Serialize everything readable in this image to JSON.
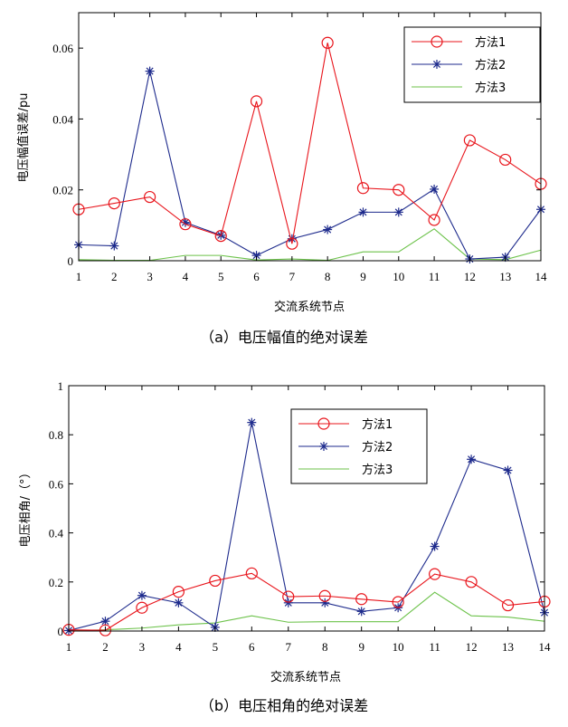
{
  "chart_data": [
    {
      "type": "line",
      "caption": "（a）电压幅值的绝对误差",
      "xlabel": "交流系统节点",
      "ylabel": "电压幅值误差/pu",
      "x": [
        1,
        2,
        3,
        4,
        5,
        6,
        7,
        8,
        9,
        10,
        11,
        12,
        13,
        14
      ],
      "xlim": [
        1,
        14
      ],
      "ylim": [
        0,
        0.07
      ],
      "yticks": [
        0,
        0.02,
        0.04,
        0.06
      ],
      "ytick_labels": [
        "0",
        "0.02",
        "0.04",
        "0.06"
      ],
      "series": [
        {
          "name": "方法1",
          "color": "#e8141b",
          "marker": "circle",
          "values": [
            0.0145,
            0.0162,
            0.018,
            0.0103,
            0.007,
            0.045,
            0.0048,
            0.0615,
            0.0205,
            0.02,
            0.0115,
            0.034,
            0.0285,
            0.0217
          ]
        },
        {
          "name": "方法2",
          "color": "#1d2a8c",
          "marker": "star",
          "values": [
            0.0045,
            0.0042,
            0.0535,
            0.0108,
            0.0072,
            0.0015,
            0.0062,
            0.0088,
            0.0137,
            0.0137,
            0.0202,
            0.0005,
            0.001,
            0.0145
          ]
        },
        {
          "name": "方法3",
          "color": "#6cc24a",
          "marker": "none",
          "values": [
            0.0003,
            0.0001,
            0.0001,
            0.0015,
            0.0015,
            0.0002,
            0.0005,
            0.0001,
            0.0025,
            0.0025,
            0.009,
            0.0005,
            0.0003,
            0.003
          ]
        }
      ]
    },
    {
      "type": "line",
      "caption": "（b）电压相角的绝对误差",
      "xlabel": "交流系统节点",
      "ylabel": "电压相角/（°）",
      "x": [
        1,
        2,
        3,
        4,
        5,
        6,
        7,
        8,
        9,
        10,
        11,
        12,
        13,
        14
      ],
      "xlim": [
        1,
        14
      ],
      "ylim": [
        0,
        1
      ],
      "yticks": [
        0,
        0.2,
        0.4,
        0.6,
        0.8,
        1
      ],
      "ytick_labels": [
        "0",
        "0.2",
        "0.4",
        "0.6",
        "0.8",
        "1"
      ],
      "series": [
        {
          "name": "方法1",
          "color": "#e8141b",
          "marker": "circle",
          "values": [
            0.005,
            0.003,
            0.095,
            0.16,
            0.205,
            0.235,
            0.14,
            0.143,
            0.13,
            0.118,
            0.232,
            0.2,
            0.105,
            0.12
          ]
        },
        {
          "name": "方法2",
          "color": "#1d2a8c",
          "marker": "star",
          "values": [
            0.002,
            0.04,
            0.145,
            0.115,
            0.015,
            0.85,
            0.115,
            0.115,
            0.08,
            0.095,
            0.345,
            0.7,
            0.655,
            0.075
          ]
        },
        {
          "name": "方法3",
          "color": "#6cc24a",
          "marker": "none",
          "values": [
            0.001,
            0.005,
            0.012,
            0.025,
            0.033,
            0.062,
            0.036,
            0.038,
            0.038,
            0.038,
            0.158,
            0.062,
            0.057,
            0.04
          ]
        }
      ]
    }
  ]
}
